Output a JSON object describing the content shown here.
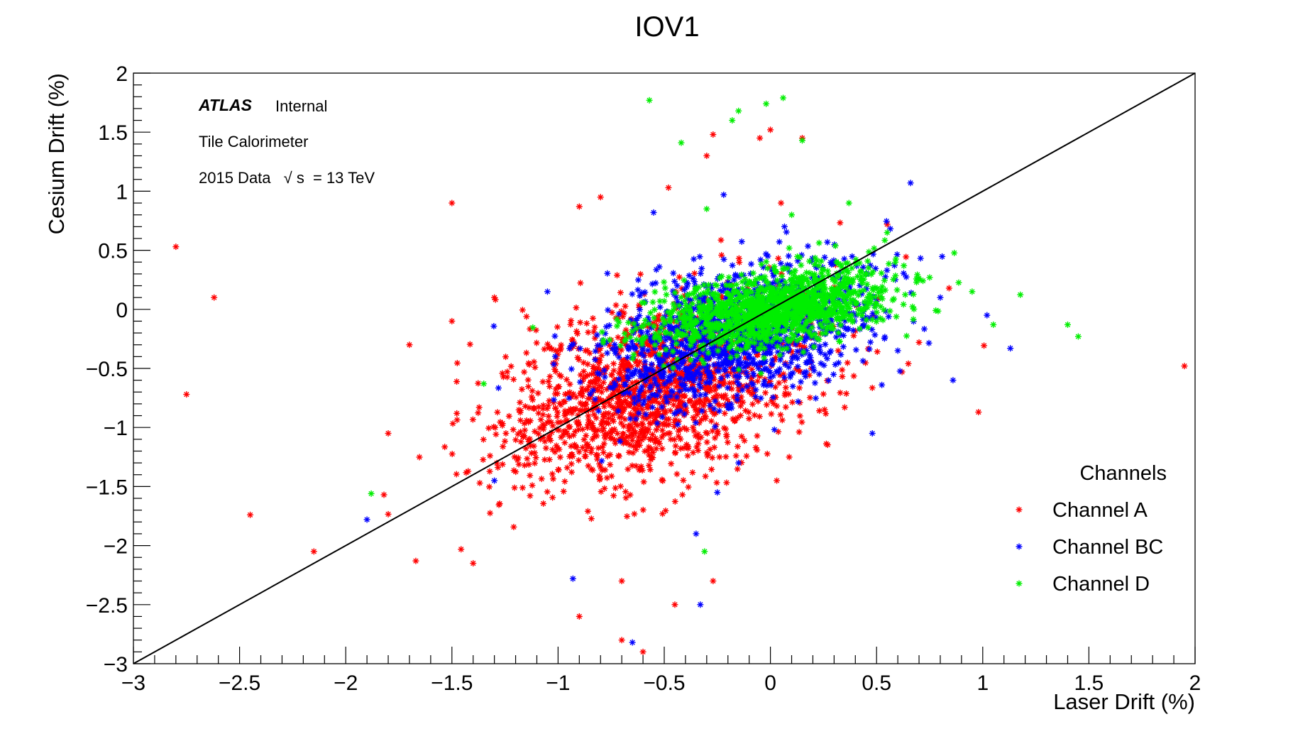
{
  "chart_data": {
    "type": "scatter",
    "title": "IOV1",
    "xlabel": "Laser Drift (%)",
    "ylabel": "Cesium Drift (%)",
    "xlim": [
      -3,
      2
    ],
    "ylim": [
      -3,
      2
    ],
    "x_ticks": [
      -3,
      -2.5,
      -2,
      -1.5,
      -1,
      -0.5,
      0,
      0.5,
      1,
      1.5,
      2
    ],
    "y_ticks": [
      -3,
      -2.5,
      -2,
      -1.5,
      -1,
      -0.5,
      0,
      0.5,
      1,
      1.5,
      2
    ],
    "x_tick_labels": [
      "−3",
      "−2.5",
      "−2",
      "−1.5",
      "−1",
      "−0.5",
      "0",
      "0.5",
      "1",
      "1.5",
      "2"
    ],
    "y_tick_labels": [
      "−3",
      "−2.5",
      "−2",
      "−1.5",
      "−1",
      "−0.5",
      "0",
      "0.5",
      "1",
      "1.5",
      "2"
    ],
    "grid": false,
    "legend": {
      "title": "Channels",
      "position": "bottom-right"
    },
    "reference_line": {
      "from": [
        -3,
        -3
      ],
      "to": [
        2,
        2
      ],
      "color": "#000000"
    },
    "annotations": {
      "atlas": "ATLAS",
      "internal": "Internal",
      "detector": "Tile Calorimeter",
      "data_label": "2015 Data",
      "sqrt_symbol": "√",
      "energy_var": "s",
      "energy_value": "= 13 TeV"
    },
    "series": [
      {
        "name": "Channel A",
        "color": "#ff0000",
        "cluster": {
          "center": [
            -0.55,
            -0.7
          ],
          "spread": [
            0.38,
            0.42
          ],
          "count": 1500
        },
        "outliers": [
          [
            -2.8,
            0.53
          ],
          [
            -2.62,
            0.1
          ],
          [
            -2.75,
            -0.72
          ],
          [
            -2.45,
            -1.74
          ],
          [
            -2.15,
            -2.05
          ],
          [
            -1.5,
            0.9
          ],
          [
            -1.7,
            -0.3
          ],
          [
            -1.8,
            -1.05
          ],
          [
            -1.82,
            -1.57
          ],
          [
            -1.67,
            -2.13
          ],
          [
            -1.4,
            -2.15
          ],
          [
            -0.9,
            -2.6
          ],
          [
            -0.7,
            -2.8
          ],
          [
            -0.7,
            -2.3
          ],
          [
            -0.45,
            -2.5
          ],
          [
            -0.27,
            -2.3
          ],
          [
            -0.27,
            1.48
          ],
          [
            -0.3,
            1.3
          ],
          [
            -0.05,
            1.45
          ],
          [
            0.0,
            1.52
          ],
          [
            0.15,
            1.45
          ],
          [
            -0.9,
            0.87
          ],
          [
            0.55,
            0.72
          ],
          [
            0.7,
            -0.28
          ],
          [
            0.98,
            -0.87
          ],
          [
            1.95,
            -0.48
          ],
          [
            0.35,
            -0.83
          ],
          [
            0.62,
            -0.53
          ],
          [
            -0.8,
            0.95
          ],
          [
            -0.48,
            1.03
          ],
          [
            0.03,
            -1.45
          ],
          [
            -1.5,
            -0.1
          ],
          [
            -1.3,
            0.1
          ],
          [
            -0.6,
            -2.9
          ],
          [
            0.05,
            0.9
          ]
        ]
      },
      {
        "name": "Channel BC",
        "color": "#0000ff",
        "cluster": {
          "center": [
            -0.15,
            -0.2
          ],
          "spread": [
            0.32,
            0.3
          ],
          "count": 1300
        },
        "outliers": [
          [
            -1.9,
            -1.78
          ],
          [
            -0.93,
            -2.28
          ],
          [
            -0.33,
            -2.5
          ],
          [
            -0.65,
            -2.82
          ],
          [
            0.66,
            1.07
          ],
          [
            0.86,
            -0.6
          ],
          [
            1.13,
            -0.33
          ],
          [
            1.02,
            -0.05
          ],
          [
            0.48,
            -1.05
          ],
          [
            -0.35,
            -1.9
          ],
          [
            -0.22,
            0.97
          ],
          [
            -0.55,
            0.82
          ],
          [
            -0.25,
            -1.55
          ],
          [
            -0.15,
            -1.3
          ],
          [
            0.8,
            0.1
          ],
          [
            0.6,
            -0.35
          ],
          [
            -1.3,
            -1.45
          ],
          [
            -1.05,
            0.15
          ]
        ]
      },
      {
        "name": "Channel D",
        "color": "#00ee00",
        "cluster": {
          "center": [
            0.0,
            0.0
          ],
          "spread": [
            0.27,
            0.17
          ],
          "count": 1400
        },
        "outliers": [
          [
            -0.57,
            1.77
          ],
          [
            0.06,
            1.79
          ],
          [
            -0.02,
            1.74
          ],
          [
            -0.15,
            1.68
          ],
          [
            -0.18,
            1.6
          ],
          [
            0.15,
            1.43
          ],
          [
            -0.42,
            1.41
          ],
          [
            -1.88,
            -1.56
          ],
          [
            -0.31,
            -2.05
          ],
          [
            1.4,
            -0.13
          ],
          [
            1.45,
            -0.23
          ],
          [
            0.95,
            0.15
          ],
          [
            1.05,
            -0.13
          ],
          [
            0.37,
            0.9
          ],
          [
            -0.3,
            0.85
          ],
          [
            0.7,
            0.25
          ],
          [
            0.75,
            0.27
          ],
          [
            -1.35,
            -0.63
          ],
          [
            0.55,
            0.65
          ],
          [
            0.1,
            0.8
          ]
        ]
      }
    ]
  }
}
